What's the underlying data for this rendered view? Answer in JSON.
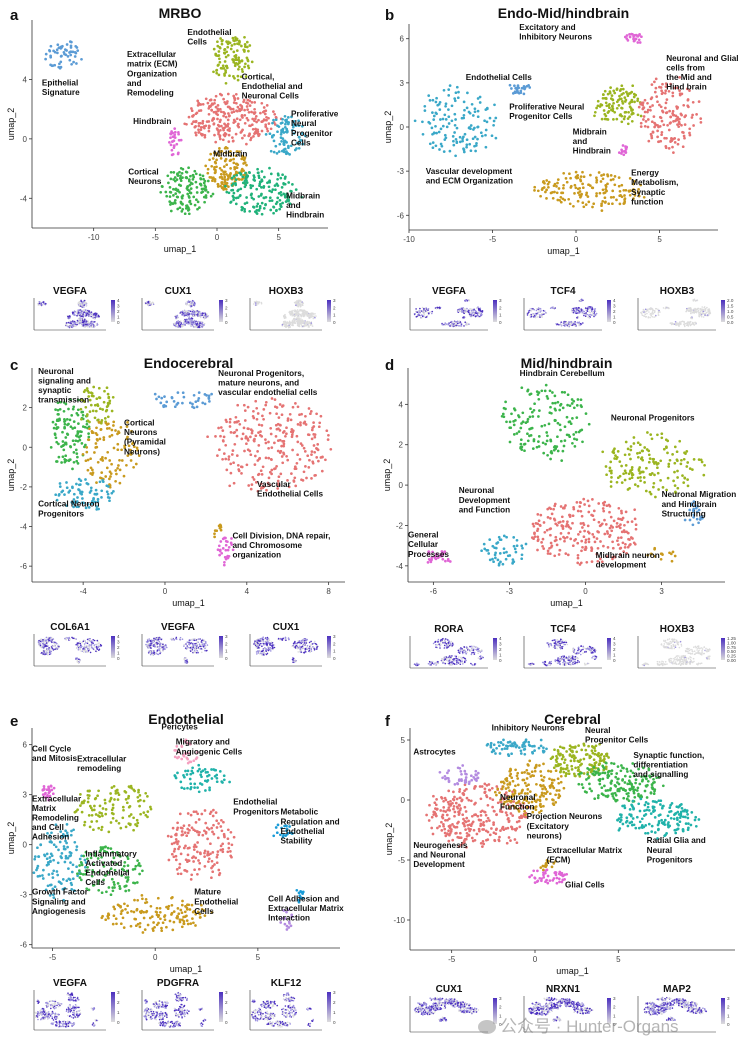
{
  "chart_data": [
    {
      "type": "scatter",
      "panel_letter": "a",
      "title": "MRBO",
      "xlabel": "umap_1",
      "ylabel": "umap_2",
      "xlim": [
        -15,
        9
      ],
      "ylim": [
        -6,
        8
      ],
      "xticks": [
        -10,
        -5,
        0,
        5
      ],
      "yticks": [
        -4,
        0,
        4
      ],
      "clusters": [
        {
          "color": "#5b9bd5",
          "cx": -12.5,
          "cy": 5.6,
          "rx": 1.5,
          "ry": 1.0,
          "n": 55
        },
        {
          "color": "#9bb520",
          "cx": 1.2,
          "cy": 5.5,
          "rx": 1.6,
          "ry": 1.6,
          "n": 120
        },
        {
          "color": "#e57373",
          "cx": 1.2,
          "cy": 1.3,
          "rx": 3.5,
          "ry": 1.6,
          "n": 260
        },
        {
          "color": "#3aa8c8",
          "cx": 5.5,
          "cy": 0.2,
          "rx": 1.6,
          "ry": 1.3,
          "n": 90
        },
        {
          "color": "#c99a1e",
          "cx": 0.8,
          "cy": -2.0,
          "rx": 1.8,
          "ry": 1.4,
          "n": 140
        },
        {
          "color": "#3cb44b",
          "cx": -2.5,
          "cy": -3.5,
          "rx": 2.0,
          "ry": 1.5,
          "n": 140
        },
        {
          "color": "#20b27a",
          "cx": 3.5,
          "cy": -3.5,
          "rx": 2.8,
          "ry": 1.5,
          "n": 170
        },
        {
          "color": "#e066d6",
          "cx": -3.4,
          "cy": -0.2,
          "rx": 0.5,
          "ry": 0.9,
          "n": 30
        }
      ],
      "annotations": [
        {
          "text": "Epithelial\nSignature",
          "x": -14.2,
          "y": 3.6
        },
        {
          "text": "Endothelial\nCells",
          "x": -2.4,
          "y": 7.0
        },
        {
          "text": "Extracellular\nmatrix (ECM)\nOrganization\nand\nRemodeling",
          "x": -7.3,
          "y": 5.5
        },
        {
          "text": "Cortical,\nEndothelial and\nNeuronal Cells",
          "x": 2.0,
          "y": 4.0
        },
        {
          "text": "Proliferative\nNeural\nProgenitor\nCells",
          "x": 6.0,
          "y": 1.5
        },
        {
          "text": "Hindbrain",
          "x": -6.8,
          "y": 1.0
        },
        {
          "text": "Midbrain",
          "x": -0.3,
          "y": -1.2
        },
        {
          "text": "Cortical\nNeurons",
          "x": -7.2,
          "y": -2.4
        },
        {
          "text": "Midbrain\nand\nHindbrain",
          "x": 5.6,
          "y": -4.0
        }
      ],
      "feature_plots": [
        {
          "gene": "VEGFA",
          "legend_ticks": [
            "4",
            "3",
            "2",
            "1",
            "0"
          ]
        },
        {
          "gene": "CUX1",
          "legend_ticks": [
            "3",
            "2",
            "1",
            "0"
          ]
        },
        {
          "gene": "HOXB3",
          "legend_ticks": [
            "3",
            "2",
            "1",
            "0"
          ]
        }
      ]
    },
    {
      "type": "scatter",
      "panel_letter": "b",
      "title": "Endo-Mid/hindbrain",
      "xlabel": "umap_1",
      "ylabel": "umap_2",
      "xlim": [
        -10,
        8.5
      ],
      "ylim": [
        -7,
        7
      ],
      "xticks": [
        -10,
        -5,
        0,
        5
      ],
      "yticks": [
        -6,
        -3,
        0,
        3,
        6
      ],
      "clusters": [
        {
          "color": "#3aa8c8",
          "cx": -7.0,
          "cy": 0.5,
          "rx": 2.4,
          "ry": 2.3,
          "n": 140
        },
        {
          "color": "#5b9bd5",
          "cx": -3.3,
          "cy": 2.6,
          "rx": 0.7,
          "ry": 0.4,
          "n": 30
        },
        {
          "color": "#e066d6",
          "cx": 3.5,
          "cy": 6.0,
          "rx": 0.6,
          "ry": 0.4,
          "n": 25
        },
        {
          "color": "#9bb520",
          "cx": 2.6,
          "cy": 1.5,
          "rx": 1.4,
          "ry": 1.3,
          "n": 110
        },
        {
          "color": "#e57373",
          "cx": 5.5,
          "cy": 0.8,
          "rx": 1.8,
          "ry": 2.4,
          "n": 160
        },
        {
          "color": "#c99a1e",
          "cx": 0.8,
          "cy": -4.3,
          "rx": 3.3,
          "ry": 1.2,
          "n": 160
        },
        {
          "color": "#e066d6",
          "cx": 2.8,
          "cy": -1.6,
          "rx": 0.3,
          "ry": 0.4,
          "n": 15
        }
      ],
      "annotations": [
        {
          "text": "Excitatory and\nInhibitory Neurons",
          "x": -3.4,
          "y": 6.6
        },
        {
          "text": "Endothelial Cells",
          "x": -6.6,
          "y": 3.2
        },
        {
          "text": "Neuronal and Glial\ncells from\nthe Mid and\nHind brain",
          "x": 5.4,
          "y": 4.5
        },
        {
          "text": "Proliferative Neural\nProgenitor Cells",
          "x": -4.0,
          "y": 1.2
        },
        {
          "text": "Midbrain\nand\nHindbrain",
          "x": -0.2,
          "y": -0.5
        },
        {
          "text": "Vascular development\nand ECM Organization",
          "x": -9.0,
          "y": -3.2
        },
        {
          "text": "Energy\nMetabolism,\nSynaptic\nfunction",
          "x": 3.3,
          "y": -3.3
        }
      ],
      "feature_plots": [
        {
          "gene": "VEGFA",
          "legend_ticks": [
            "3",
            "2",
            "1",
            "0"
          ]
        },
        {
          "gene": "TCF4",
          "legend_ticks": [
            "4",
            "3",
            "2",
            "1",
            "0"
          ]
        },
        {
          "gene": "HOXB3",
          "legend_ticks": [
            "2.0",
            "1.5",
            "1.0",
            "0.5",
            "0.0"
          ]
        }
      ]
    },
    {
      "type": "scatter",
      "panel_letter": "c",
      "title": "Endocerebral",
      "xlabel": "umap_1",
      "ylabel": "umap_2",
      "xlim": [
        -6.5,
        8.8
      ],
      "ylim": [
        -6.8,
        4.0
      ],
      "xticks": [
        -4,
        0,
        4,
        8
      ],
      "yticks": [
        -6,
        -4,
        -2,
        0,
        2
      ],
      "clusters": [
        {
          "color": "#3cb44b",
          "cx": -4.7,
          "cy": 0.8,
          "rx": 1.0,
          "ry": 1.7,
          "n": 120
        },
        {
          "color": "#9bb520",
          "cx": -3.3,
          "cy": 2.1,
          "rx": 1.0,
          "ry": 1.0,
          "n": 60
        },
        {
          "color": "#c99a1e",
          "cx": -2.6,
          "cy": -0.2,
          "rx": 1.4,
          "ry": 1.7,
          "n": 110
        },
        {
          "color": "#3aa8c8",
          "cx": -3.9,
          "cy": -2.3,
          "rx": 1.4,
          "ry": 0.8,
          "n": 80
        },
        {
          "color": "#5b9bd5",
          "cx": 0.9,
          "cy": 2.4,
          "rx": 1.6,
          "ry": 0.5,
          "n": 40
        },
        {
          "color": "#e57373",
          "cx": 5.2,
          "cy": 0.0,
          "rx": 2.8,
          "ry": 2.4,
          "n": 280
        },
        {
          "color": "#e066d6",
          "cx": 3.0,
          "cy": -5.2,
          "rx": 0.4,
          "ry": 0.7,
          "n": 30
        },
        {
          "color": "#c99a1e",
          "cx": 2.6,
          "cy": -4.3,
          "rx": 0.2,
          "ry": 0.5,
          "n": 10
        }
      ],
      "annotations": [
        {
          "text": "Neuronal\nsignaling and\nsynaptic\ntransmission",
          "x": -6.2,
          "y": 3.7
        },
        {
          "text": "Neuronal Progenitors,\nmature neurons, and\nvascular endothelial cells",
          "x": 2.6,
          "y": 3.6
        },
        {
          "text": "Cortical\nNeurons\n(Pyramidal\nNeurons)",
          "x": -2.0,
          "y": 1.1
        },
        {
          "text": "Vascular\nEndothelial Cells",
          "x": 4.5,
          "y": -2.0
        },
        {
          "text": "Cortical Neuron\nProgenitors",
          "x": -6.2,
          "y": -3.0
        },
        {
          "text": "Cell Division, DNA repair,\nand Chromosome\norganization",
          "x": 3.3,
          "y": -4.6
        }
      ],
      "feature_plots": [
        {
          "gene": "COL6A1",
          "legend_ticks": [
            "4",
            "3",
            "2",
            "1",
            "0"
          ]
        },
        {
          "gene": "VEGFA",
          "legend_ticks": [
            "3",
            "2",
            "1",
            "0"
          ]
        },
        {
          "gene": "CUX1",
          "legend_ticks": [
            "3",
            "2",
            "1",
            "0"
          ]
        }
      ]
    },
    {
      "type": "scatter",
      "panel_letter": "d",
      "title": "Mid/hindbrain",
      "xlabel": "umap_1",
      "ylabel": "umap_2",
      "xlim": [
        -7,
        5.5
      ],
      "ylim": [
        -4.8,
        5.8
      ],
      "xticks": [
        -6,
        -3,
        0,
        3
      ],
      "yticks": [
        -4,
        -2,
        0,
        2,
        4
      ],
      "clusters": [
        {
          "color": "#3cb44b",
          "cx": -1.6,
          "cy": 3.2,
          "rx": 1.7,
          "ry": 1.8,
          "n": 160
        },
        {
          "color": "#9bb520",
          "cx": 2.6,
          "cy": 1.0,
          "rx": 2.0,
          "ry": 1.5,
          "n": 160
        },
        {
          "color": "#5b9bd5",
          "cx": 4.3,
          "cy": -1.4,
          "rx": 0.4,
          "ry": 0.6,
          "n": 25
        },
        {
          "color": "#e57373",
          "cx": 0.0,
          "cy": -2.3,
          "rx": 2.1,
          "ry": 1.6,
          "n": 240
        },
        {
          "color": "#3aa8c8",
          "cx": -3.2,
          "cy": -3.2,
          "rx": 0.9,
          "ry": 0.8,
          "n": 50
        },
        {
          "color": "#e066d6",
          "cx": -5.8,
          "cy": -3.6,
          "rx": 0.5,
          "ry": 0.4,
          "n": 30
        },
        {
          "color": "#c99a1e",
          "cx": 3.0,
          "cy": -3.5,
          "rx": 0.6,
          "ry": 0.4,
          "n": 15
        }
      ],
      "annotations": [
        {
          "text": "Hindbrain Cerebellum",
          "x": -2.6,
          "y": 5.4
        },
        {
          "text": "Neuronal Progenitors",
          "x": 1.0,
          "y": 3.2
        },
        {
          "text": "Neuronal\nDevelopment\nand Function",
          "x": -5.0,
          "y": -0.4
        },
        {
          "text": "Neuronal Migration\nand Hindbrain\nStructuring",
          "x": 3.0,
          "y": -0.6
        },
        {
          "text": "General\nCellular\nProcesses",
          "x": -7.0,
          "y": -2.6
        },
        {
          "text": "Midbrain neuron\ndevelopment",
          "x": 0.4,
          "y": -3.6
        }
      ],
      "feature_plots": [
        {
          "gene": "RORA",
          "legend_ticks": [
            "4",
            "3",
            "2",
            "1",
            "0"
          ]
        },
        {
          "gene": "TCF4",
          "legend_ticks": [
            "4",
            "3",
            "2",
            "1",
            "0"
          ]
        },
        {
          "gene": "HOXB3",
          "legend_ticks": [
            "1.25",
            "1.00",
            "0.75",
            "0.50",
            "0.25",
            "0.00"
          ]
        }
      ]
    },
    {
      "type": "scatter",
      "panel_letter": "e",
      "title": "Endothelial",
      "xlabel": "umap_1",
      "ylabel": "umap_2",
      "xlim": [
        -6,
        9
      ],
      "ylim": [
        -6.2,
        7
      ],
      "xticks": [
        -5,
        0,
        5
      ],
      "yticks": [
        -6,
        -3,
        0,
        3,
        6
      ],
      "clusters": [
        {
          "color": "#e066d6",
          "cx": -5.2,
          "cy": 3.2,
          "rx": 0.3,
          "ry": 0.6,
          "n": 25
        },
        {
          "color": "#3aa8c8",
          "cx": -4.6,
          "cy": -1.0,
          "rx": 1.2,
          "ry": 2.2,
          "n": 120
        },
        {
          "color": "#9bb520",
          "cx": -2.0,
          "cy": 2.2,
          "rx": 1.8,
          "ry": 1.4,
          "n": 120
        },
        {
          "color": "#3cb44b",
          "cx": -2.2,
          "cy": -1.5,
          "rx": 1.6,
          "ry": 1.5,
          "n": 110
        },
        {
          "color": "#f5a0c0",
          "cx": 1.5,
          "cy": 5.5,
          "rx": 0.6,
          "ry": 0.7,
          "n": 30
        },
        {
          "color": "#20b2aa",
          "cx": 2.2,
          "cy": 4.0,
          "rx": 1.3,
          "ry": 0.8,
          "n": 60
        },
        {
          "color": "#e57373",
          "cx": 2.2,
          "cy": 0.0,
          "rx": 1.6,
          "ry": 2.3,
          "n": 160
        },
        {
          "color": "#c99a1e",
          "cx": 0.0,
          "cy": -4.2,
          "rx": 2.6,
          "ry": 1.0,
          "n": 140
        },
        {
          "color": "#1a9bd7",
          "cx": 6.2,
          "cy": 0.8,
          "rx": 0.5,
          "ry": 0.4,
          "n": 20
        },
        {
          "color": "#1a9bd7",
          "cx": 7.0,
          "cy": -3.0,
          "rx": 0.3,
          "ry": 0.4,
          "n": 12
        },
        {
          "color": "#b38be0",
          "cx": 6.4,
          "cy": -4.5,
          "rx": 0.3,
          "ry": 0.6,
          "n": 15
        }
      ],
      "annotations": [
        {
          "text": "Cell Cycle\nand Mitosis",
          "x": -6.0,
          "y": 5.6
        },
        {
          "text": "Pericytes",
          "x": 0.3,
          "y": 6.9
        },
        {
          "text": "Extracellular\nremodeling",
          "x": -3.8,
          "y": 5.0
        },
        {
          "text": "Migratory and\nAngiogenic Cells",
          "x": 1.0,
          "y": 6.0
        },
        {
          "text": "Extracellular\nMatrix\nRemodeling\nand Cell\nAdhesion",
          "x": -6.0,
          "y": 2.6
        },
        {
          "text": "Endothelial\nProgenitors",
          "x": 3.8,
          "y": 2.4
        },
        {
          "text": "Metabolic\nRegulation and\nEndothelial\nStability",
          "x": 6.1,
          "y": 1.8
        },
        {
          "text": "Inflammatory\nActivated\nEndothelial\nCells",
          "x": -3.4,
          "y": -0.7
        },
        {
          "text": "Growth Factor\nSignaling and\nAngiogenesis",
          "x": -6.0,
          "y": -3.0
        },
        {
          "text": "Mature\nEndothelial\nCells",
          "x": 1.9,
          "y": -3.0
        },
        {
          "text": "Cell Adhesion and\nExtracellular Matrix\nInteraction",
          "x": 5.5,
          "y": -3.4
        }
      ],
      "feature_plots": [
        {
          "gene": "VEGFA",
          "legend_ticks": [
            "3",
            "2",
            "1",
            "0"
          ]
        },
        {
          "gene": "PDGFRA",
          "legend_ticks": [
            "3",
            "2",
            "1",
            "0"
          ]
        },
        {
          "gene": "KLF12",
          "legend_ticks": [
            "3",
            "2",
            "1",
            "0"
          ]
        }
      ]
    },
    {
      "type": "scatter",
      "panel_letter": "f",
      "title": "Cerebral",
      "xlabel": "umap_1",
      "ylabel": "umap_2",
      "xlim": [
        -7.5,
        12
      ],
      "ylim": [
        -12.5,
        6
      ],
      "xticks": [
        -5,
        0,
        5
      ],
      "yticks": [
        -10,
        -5,
        0,
        5
      ],
      "clusters": [
        {
          "color": "#e57373",
          "cx": -3.4,
          "cy": -1.3,
          "rx": 3.0,
          "ry": 2.6,
          "n": 300
        },
        {
          "color": "#b38be0",
          "cx": -4.5,
          "cy": 2.0,
          "rx": 1.2,
          "ry": 0.8,
          "n": 45
        },
        {
          "color": "#3aa8c8",
          "cx": -1.0,
          "cy": 4.4,
          "rx": 1.8,
          "ry": 0.8,
          "n": 70
        },
        {
          "color": "#c99a1e",
          "cx": -0.3,
          "cy": 1.0,
          "rx": 2.0,
          "ry": 2.0,
          "n": 170
        },
        {
          "color": "#9bb520",
          "cx": 2.8,
          "cy": 3.3,
          "rx": 1.8,
          "ry": 1.4,
          "n": 150
        },
        {
          "color": "#3cb44b",
          "cx": 5.0,
          "cy": 1.5,
          "rx": 2.5,
          "ry": 1.6,
          "n": 180
        },
        {
          "color": "#20b2aa",
          "cx": 7.2,
          "cy": -1.5,
          "rx": 2.5,
          "ry": 1.6,
          "n": 160
        },
        {
          "color": "#e066d6",
          "cx": 0.7,
          "cy": -6.4,
          "rx": 1.1,
          "ry": 0.6,
          "n": 45
        },
        {
          "color": "#c99a1e",
          "cx": 0.7,
          "cy": -5.3,
          "rx": 0.6,
          "ry": 0.5,
          "n": 15
        }
      ],
      "annotations": [
        {
          "text": "Inhibitory Neurons",
          "x": -2.6,
          "y": 5.8
        },
        {
          "text": "Neural\nProgenitor Cells",
          "x": 3.0,
          "y": 5.6
        },
        {
          "text": "Astrocytes",
          "x": -7.3,
          "y": 3.8
        },
        {
          "text": "Synaptic function,\ndifferentiation\nand signalling",
          "x": 5.9,
          "y": 3.5
        },
        {
          "text": "Neuronal\nFunction",
          "x": -2.1,
          "y": 0.0
        },
        {
          "text": "Projection Neurons\n(Excitatory\nneurons)",
          "x": -0.5,
          "y": -1.6
        },
        {
          "text": "Neurogenesis\nand Neuronal\nDevelopment",
          "x": -7.3,
          "y": -4.0
        },
        {
          "text": "Extracellular Matrix\n(ECM)",
          "x": 0.7,
          "y": -4.4
        },
        {
          "text": "Radial Glia and\nNeural\nProgenitors",
          "x": 6.7,
          "y": -3.6
        },
        {
          "text": "Glial Cells",
          "x": 1.8,
          "y": -7.3
        }
      ],
      "feature_plots": [
        {
          "gene": "CUX1",
          "legend_ticks": [
            "3",
            "2",
            "1",
            "0"
          ]
        },
        {
          "gene": "NRXN1",
          "legend_ticks": [
            "3",
            "2",
            "1",
            "0"
          ]
        },
        {
          "gene": "MAP2",
          "legend_ticks": [
            "3",
            "2",
            "1",
            "0"
          ]
        }
      ]
    }
  ],
  "colors": {
    "feature_high": "#4b2fbf",
    "feature_mid": "#9c92e0",
    "feature_low": "#dcdcdc",
    "axis": "#333333",
    "text": "#111111"
  },
  "watermark": {
    "text": "公众号 · Hunter-Organs"
  }
}
